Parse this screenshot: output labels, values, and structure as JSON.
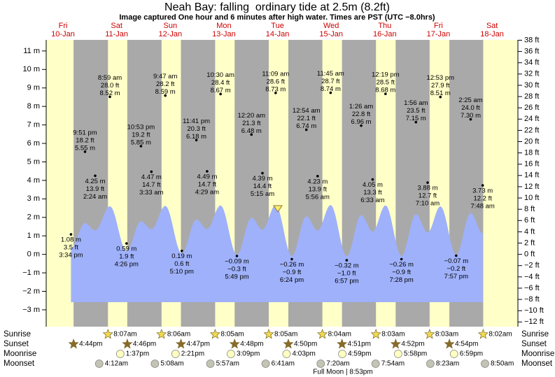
{
  "chart_data": {
    "type": "tide",
    "title": "Neah Bay: falling  ordinary tide at 2.5m (8.2ft)",
    "subtitle": "Image captured One hour and 6 minutes after high water. Times are PST (UTC −8.0hrs)",
    "ylim": [
      -3.91,
      11.6
    ],
    "yticks": [
      {
        "value": 11,
        "label": "11 m"
      },
      {
        "value": 10,
        "label": "10 m"
      },
      {
        "value": 9,
        "label": "9 m"
      },
      {
        "value": 8,
        "label": "8 m"
      },
      {
        "value": 7,
        "label": "7 m"
      },
      {
        "value": 6,
        "label": "6 m"
      },
      {
        "value": 5,
        "label": "5 m"
      },
      {
        "value": 4,
        "label": "4 m"
      },
      {
        "value": 3,
        "label": "3 m"
      },
      {
        "value": 2,
        "label": "2 m"
      },
      {
        "value": 1,
        "label": "1 m"
      },
      {
        "value": 0,
        "label": "0 m"
      },
      {
        "value": -1,
        "label": "−1 m"
      },
      {
        "value": -2,
        "label": "−2 m"
      },
      {
        "value": -3,
        "label": "−3 m"
      }
    ],
    "y2lim": [
      -12.83,
      38.06
    ],
    "y2ticks": [
      {
        "value": 38,
        "label": "38 ft"
      },
      {
        "value": 36,
        "label": "36 ft"
      },
      {
        "value": 34,
        "label": "34 ft"
      },
      {
        "value": 32,
        "label": "32 ft"
      },
      {
        "value": 30,
        "label": "30 ft"
      },
      {
        "value": 28,
        "label": "28 ft"
      },
      {
        "value": 26,
        "label": "26 ft"
      },
      {
        "value": 24,
        "label": "24 ft"
      },
      {
        "value": 22,
        "label": "22 ft"
      },
      {
        "value": 20,
        "label": "20 ft"
      },
      {
        "value": 18,
        "label": "18 ft"
      },
      {
        "value": 16,
        "label": "16 ft"
      },
      {
        "value": 14,
        "label": "14 ft"
      },
      {
        "value": 12,
        "label": "12 ft"
      },
      {
        "value": 10,
        "label": "10 ft"
      },
      {
        "value": 8,
        "label": "8 ft"
      },
      {
        "value": 6,
        "label": "6 ft"
      },
      {
        "value": 4,
        "label": "4 ft"
      },
      {
        "value": 2,
        "label": "2 ft"
      },
      {
        "value": 0,
        "label": "0 ft"
      },
      {
        "value": -2,
        "label": "−2 ft"
      },
      {
        "value": -4,
        "label": "−4 ft"
      },
      {
        "value": -6,
        "label": "−6 ft"
      },
      {
        "value": -8,
        "label": "−8 ft"
      },
      {
        "value": -10,
        "label": "−10 ft"
      },
      {
        "value": -12,
        "label": "−12 ft"
      }
    ],
    "row_labels": [
      "Sunrise",
      "Sunset",
      "Moonrise",
      "Moonset"
    ],
    "moon_phase": "Full Moon | 8:53pm",
    "days": [
      {
        "weekday": "Fri",
        "date": "10-Jan",
        "sunset": "4:44pm",
        "tides": [
          {
            "time": "3:34 pm",
            "m": 1.08,
            "m_label": "1.08 m",
            "ft": 3.5,
            "ft_label": "3.5 ft"
          },
          {
            "time": "9:51 pm",
            "m": 5.55,
            "m_label": "5.55 m",
            "ft": 18.2,
            "ft_label": "18.2 ft"
          }
        ]
      },
      {
        "weekday": "Sat",
        "date": "11-Jan",
        "sunrise": "8:07am",
        "sunset": "4:46pm",
        "moonrise": "1:37pm",
        "moonset": "4:12am",
        "tides": [
          {
            "time": "2:24 am",
            "m": 4.25,
            "m_label": "4.25 m",
            "ft": 13.9,
            "ft_label": "13.9 ft"
          },
          {
            "time": "8:59 am",
            "m": 8.52,
            "m_label": "8.52 m",
            "ft": 28.0,
            "ft_label": "28.0 ft"
          },
          {
            "time": "4:26 pm",
            "m": 0.59,
            "m_label": "0.59 m",
            "ft": 1.9,
            "ft_label": "1.9 ft"
          },
          {
            "time": "10:53 pm",
            "m": 5.85,
            "m_label": "5.85 m",
            "ft": 19.2,
            "ft_label": "19.2 ft"
          }
        ]
      },
      {
        "weekday": "Sun",
        "date": "12-Jan",
        "sunrise": "8:06am",
        "sunset": "4:47pm",
        "moonrise": "2:21pm",
        "moonset": "5:08am",
        "tides": [
          {
            "time": "3:33 am",
            "m": 4.47,
            "m_label": "4.47 m",
            "ft": 14.7,
            "ft_label": "14.7 ft"
          },
          {
            "time": "9:47 am",
            "m": 8.59,
            "m_label": "8.59 m",
            "ft": 28.2,
            "ft_label": "28.2 ft"
          },
          {
            "time": "5:10 pm",
            "m": 0.19,
            "m_label": "0.19 m",
            "ft": 0.6,
            "ft_label": "0.6 ft"
          },
          {
            "time": "11:41 pm",
            "m": 6.18,
            "m_label": "6.18 m",
            "ft": 20.3,
            "ft_label": "20.3 ft"
          }
        ]
      },
      {
        "weekday": "Mon",
        "date": "13-Jan",
        "sunrise": "8:05am",
        "sunset": "4:48pm",
        "moonrise": "3:09pm",
        "moonset": "5:57am",
        "tides": [
          {
            "time": "4:29 am",
            "m": 4.49,
            "m_label": "4.49 m",
            "ft": 14.7,
            "ft_label": "14.7 ft"
          },
          {
            "time": "10:30 am",
            "m": 8.67,
            "m_label": "8.67 m",
            "ft": 28.4,
            "ft_label": "28.4 ft"
          },
          {
            "time": "5:49 pm",
            "m": -0.09,
            "m_label": "−0.09 m",
            "ft": -0.3,
            "ft_label": "−0.3 ft"
          }
        ]
      },
      {
        "weekday": "Tue",
        "date": "14-Jan",
        "sunrise": "8:05am",
        "sunset": "4:50pm",
        "moonrise": "4:03pm",
        "moonset": "6:41am",
        "tides": [
          {
            "time": "12:20 am",
            "m": 6.48,
            "m_label": "6.48 m",
            "ft": 21.3,
            "ft_label": "21.3 ft"
          },
          {
            "time": "5:15 am",
            "m": 4.39,
            "m_label": "4.39 m",
            "ft": 14.4,
            "ft_label": "14.4 ft"
          },
          {
            "time": "11:09 am",
            "m": 8.73,
            "m_label": "8.73 m",
            "ft": 28.6,
            "ft_label": "28.6 ft"
          },
          {
            "time": "6:24 pm",
            "m": -0.26,
            "m_label": "−0.26 m",
            "ft": -0.9,
            "ft_label": "−0.9 ft"
          }
        ]
      },
      {
        "weekday": "Wed",
        "date": "15-Jan",
        "sunrise": "8:04am",
        "sunset": "4:51pm",
        "moonrise": "4:59pm",
        "moonset": "7:20am",
        "tides": [
          {
            "time": "12:54 am",
            "m": 6.74,
            "m_label": "6.74 m",
            "ft": 22.1,
            "ft_label": "22.1 ft"
          },
          {
            "time": "5:56 am",
            "m": 4.23,
            "m_label": "4.23 m",
            "ft": 13.9,
            "ft_label": "13.9 ft"
          },
          {
            "time": "11:45 am",
            "m": 8.74,
            "m_label": "8.74 m",
            "ft": 28.7,
            "ft_label": "28.7 ft"
          },
          {
            "time": "6:57 pm",
            "m": -0.32,
            "m_label": "−0.32 m",
            "ft": -1.0,
            "ft_label": "−1.0 ft"
          }
        ]
      },
      {
        "weekday": "Thu",
        "date": "16-Jan",
        "sunrise": "8:03am",
        "sunset": "4:52pm",
        "moonrise": "5:58pm",
        "moonset": "7:54am",
        "tides": [
          {
            "time": "1:26 am",
            "m": 6.96,
            "m_label": "6.96 m",
            "ft": 22.8,
            "ft_label": "22.8 ft"
          },
          {
            "time": "6:33 am",
            "m": 4.05,
            "m_label": "4.05 m",
            "ft": 13.3,
            "ft_label": "13.3 ft"
          },
          {
            "time": "12:19 pm",
            "m": 8.68,
            "m_label": "8.68 m",
            "ft": 28.5,
            "ft_label": "28.5 ft"
          },
          {
            "time": "7:28 pm",
            "m": -0.26,
            "m_label": "−0.26 m",
            "ft": -0.9,
            "ft_label": "−0.9 ft"
          }
        ]
      },
      {
        "weekday": "Fri",
        "date": "17-Jan",
        "sunrise": "8:03am",
        "sunset": "4:54pm",
        "moonrise": "6:59pm",
        "moonset": "8:23am",
        "tides": [
          {
            "time": "1:56 am",
            "m": 7.15,
            "m_label": "7.15 m",
            "ft": 23.5,
            "ft_label": "23.5 ft"
          },
          {
            "time": "7:10 am",
            "m": 3.88,
            "m_label": "3.88 m",
            "ft": 12.7,
            "ft_label": "12.7 ft"
          },
          {
            "time": "12:53 pm",
            "m": 8.51,
            "m_label": "8.51 m",
            "ft": 27.9,
            "ft_label": "27.9 ft"
          },
          {
            "time": "7:57 pm",
            "m": -0.07,
            "m_label": "−0.07 m",
            "ft": -0.2,
            "ft_label": "−0.2 ft"
          }
        ]
      },
      {
        "weekday": "Sat",
        "date": "18-Jan",
        "sunrise": "8:02am",
        "moonset": "8:50am",
        "tides": [
          {
            "time": "2:25 am",
            "m": 7.3,
            "m_label": "7.30 m",
            "ft": 24.0,
            "ft_label": "24.0 ft"
          },
          {
            "time": "7:48 am",
            "m": 3.73,
            "m_label": "3.73 m",
            "ft": 12.2,
            "ft_label": "12.2 ft"
          }
        ]
      }
    ]
  }
}
